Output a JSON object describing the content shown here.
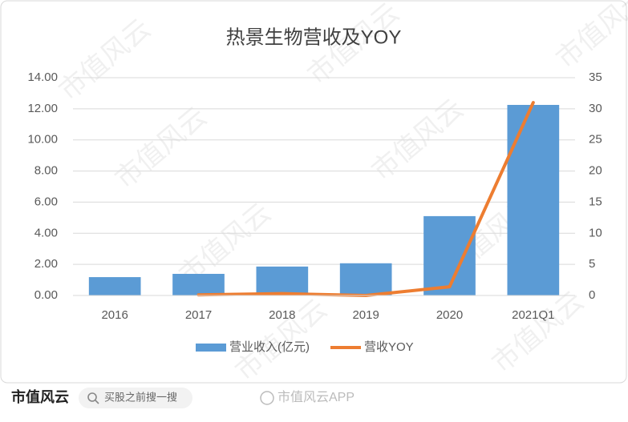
{
  "chart_data": {
    "type": "combo",
    "title": "热景生物营收及YOY",
    "categories": [
      "2016",
      "2017",
      "2018",
      "2019",
      "2020",
      "2021Q1"
    ],
    "series": [
      {
        "name": "营业收入(亿元)",
        "type": "bar",
        "color": "#5b9bd5",
        "values": [
          1.18,
          1.39,
          1.86,
          2.07,
          5.1,
          12.25
        ]
      },
      {
        "name": "营收YOY",
        "type": "line",
        "axis": "y2",
        "color": "#ed7d31",
        "values": [
          null,
          0.1,
          0.3,
          0.0,
          1.4,
          31.0
        ]
      }
    ],
    "ylim": [
      0,
      14
    ],
    "yticks": [
      {
        "value": 0,
        "label": "0.00"
      },
      {
        "value": 2,
        "label": "2.00"
      },
      {
        "value": 4,
        "label": "4.00"
      },
      {
        "value": 6,
        "label": "6.00"
      },
      {
        "value": 8,
        "label": "8.00"
      },
      {
        "value": 10,
        "label": "10.00"
      },
      {
        "value": 12,
        "label": "12.00"
      },
      {
        "value": 14,
        "label": "14.00"
      }
    ],
    "y2lim": [
      0,
      35
    ],
    "y2ticks": [
      0,
      5,
      10,
      15,
      20,
      25,
      30,
      35
    ],
    "grid": true,
    "legend": "bottom"
  },
  "watermark": "市值风云",
  "footer": {
    "logo": "市值风云",
    "search": "买股之前搜一搜",
    "weibo": "市值风云APP"
  }
}
